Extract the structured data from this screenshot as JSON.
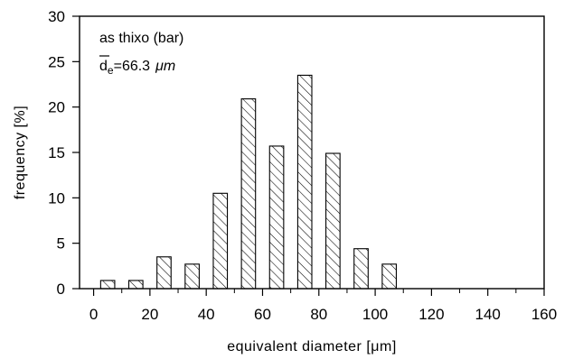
{
  "chart_data": {
    "type": "bar",
    "title": "",
    "xlabel": "equivalent diameter [μm]",
    "ylabel": "frequency [%]",
    "xlim": [
      -5,
      160
    ],
    "ylim": [
      0,
      30
    ],
    "x_ticks": [
      0,
      20,
      40,
      60,
      80,
      100,
      120,
      140,
      160
    ],
    "x_minor_ticks": [
      10,
      30,
      50,
      70,
      90,
      110,
      130,
      150
    ],
    "y_ticks": [
      0,
      5,
      10,
      15,
      20,
      25,
      30
    ],
    "bar_width": 5,
    "grid": false,
    "bar_fill": "diagonal-hatch",
    "bars": [
      {
        "x": 5,
        "value": 0.9
      },
      {
        "x": 15,
        "value": 0.9
      },
      {
        "x": 25,
        "value": 3.5
      },
      {
        "x": 35,
        "value": 2.7
      },
      {
        "x": 45,
        "value": 10.5
      },
      {
        "x": 55,
        "value": 20.9
      },
      {
        "x": 65,
        "value": 15.7
      },
      {
        "x": 75,
        "value": 23.5
      },
      {
        "x": 85,
        "value": 14.9
      },
      {
        "x": 95,
        "value": 4.4
      },
      {
        "x": 105,
        "value": 2.7
      }
    ],
    "annotations": {
      "line1": "as thixo (bar)",
      "mean_symbol": "d",
      "mean_subscript": "e",
      "mean_value": "=66.3",
      "mean_unit": "μm"
    }
  }
}
